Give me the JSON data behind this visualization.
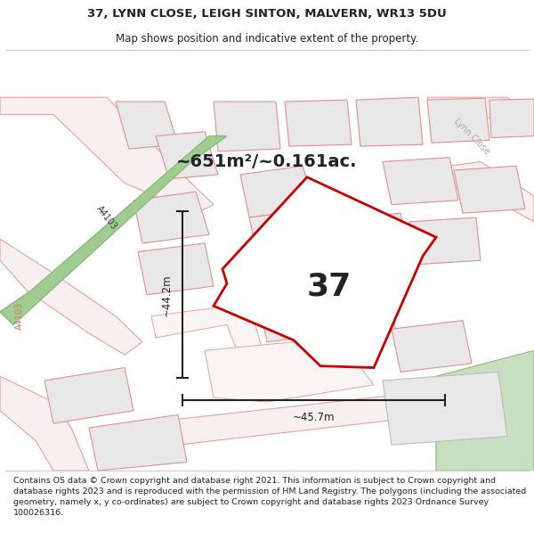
{
  "title_line1": "37, LYNN CLOSE, LEIGH SINTON, MALVERN, WR13 5DU",
  "title_line2": "Map shows position and indicative extent of the property.",
  "area_text": "~651m²/~0.161ac.",
  "number_text": "37",
  "dim_height": "~44.2m",
  "dim_width": "~45.7m",
  "footer_text": "Contains OS data © Crown copyright and database right 2021. This information is subject to Crown copyright and database rights 2023 and is reproduced with the permission of HM Land Registry. The polygons (including the associated geometry, namely x, y co-ordinates) are subject to Crown copyright and database rights 2023 Ordnance Survey 100026316.",
  "map_bg": "#ffffff",
  "title_bg": "#ffffff",
  "footer_bg": "#ffffff",
  "building_fill": "#e8e8e8",
  "building_edge": "#e09090",
  "road_edge": "#e8a0a0",
  "road_fill": "#f8f0f0",
  "green_fill": "#c8e0c0",
  "green_band_fill": "#a0cc90",
  "green_band_edge": "#88bb78",
  "property_fill": "#ffffff",
  "property_edge": "#cc0000",
  "dim_color": "#222222",
  "text_dark": "#222222",
  "road_label_color": "#886666",
  "a4103_label_color": "#888888",
  "lynn_close_color": "#aaaaaa",
  "separator_color": "#cccccc"
}
